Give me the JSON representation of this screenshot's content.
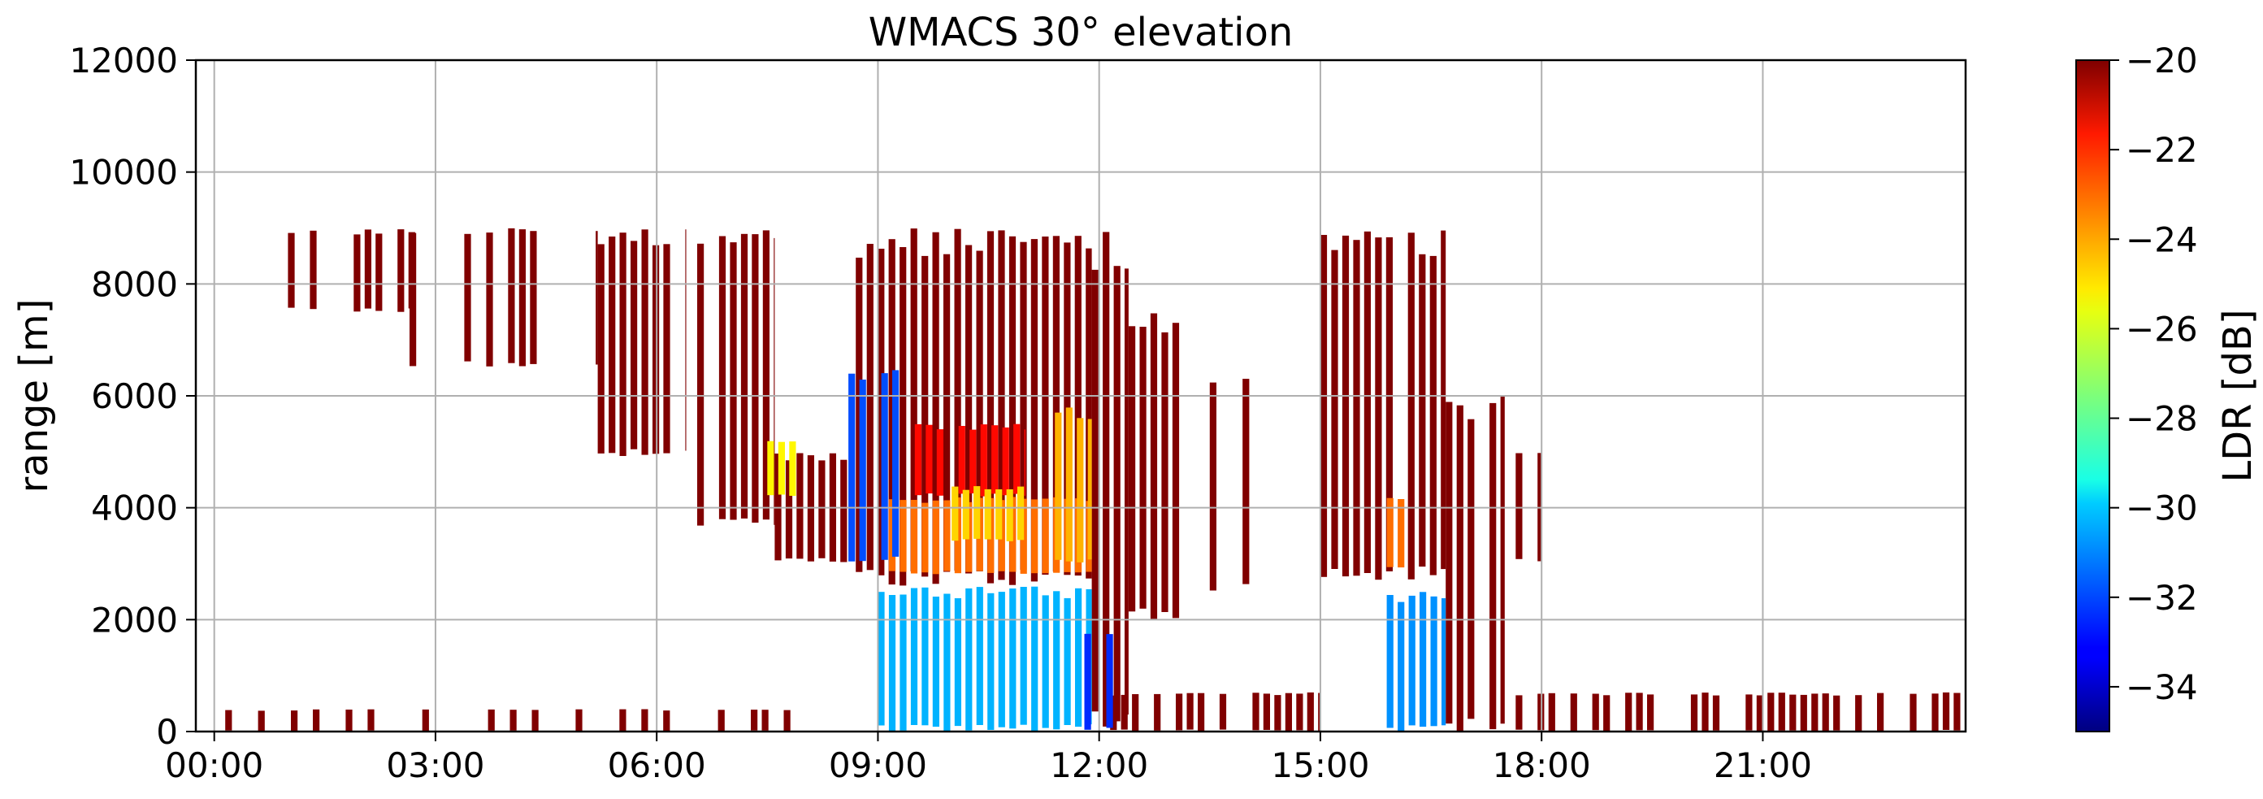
{
  "chart_data": {
    "type": "heatmap",
    "title": "WMACS 30° elevation",
    "xlabel": "",
    "ylabel": "range [m]",
    "x_tick_labels": [
      "00:00",
      "03:00",
      "06:00",
      "09:00",
      "12:00",
      "15:00",
      "18:00",
      "21:00"
    ],
    "x_ticks_hours": [
      0,
      3,
      6,
      9,
      12,
      15,
      18,
      21
    ],
    "xlim_hours": [
      -0.25,
      23.75
    ],
    "ylim": [
      0,
      12000
    ],
    "y_tick_labels": [
      "0",
      "2000",
      "4000",
      "6000",
      "8000",
      "10000",
      "12000"
    ],
    "y_ticks": [
      0,
      2000,
      4000,
      6000,
      8000,
      10000,
      12000
    ],
    "grid": true,
    "colorbar": {
      "label": "LDR [dB]",
      "range": [
        -35,
        -20
      ],
      "ticks": [
        -34,
        -32,
        -30,
        -28,
        -26,
        -24,
        -22,
        -20
      ],
      "tick_labels": [
        "−34",
        "−32",
        "−30",
        "−28",
        "−26",
        "−24",
        "−22",
        "−20"
      ],
      "colormap": "jet"
    },
    "ldr_regions": [
      {
        "t_start": 0.0,
        "t_end": 8.2,
        "r_bottom": 0,
        "r_top": 400,
        "ldr": -20,
        "density": 0.35
      },
      {
        "t_start": 1.0,
        "t_end": 3.2,
        "r_bottom": 7500,
        "r_top": 9000,
        "ldr": -20,
        "density": 0.45
      },
      {
        "t_start": 2.5,
        "t_end": 5.2,
        "r_bottom": 6500,
        "r_top": 9000,
        "ldr": -20,
        "density": 0.5
      },
      {
        "t_start": 5.2,
        "t_end": 6.4,
        "r_bottom": 4900,
        "r_top": 9000,
        "ldr": -20,
        "density": 0.85
      },
      {
        "t_start": 6.4,
        "t_end": 7.6,
        "r_bottom": 3600,
        "r_top": 9000,
        "ldr": -20,
        "density": 0.7
      },
      {
        "t_start": 7.6,
        "t_end": 8.7,
        "r_bottom": 3000,
        "r_top": 5000,
        "ldr": -20,
        "density": 0.85
      },
      {
        "t_start": 8.7,
        "t_end": 11.9,
        "r_bottom": 2600,
        "r_top": 9000,
        "ldr": -20,
        "density": 0.95
      },
      {
        "t_start": 11.9,
        "t_end": 12.4,
        "r_bottom": 0,
        "r_top": 9000,
        "ldr": -20,
        "density": 0.9
      },
      {
        "t_start": 12.4,
        "t_end": 13.2,
        "r_bottom": 2000,
        "r_top": 7500,
        "ldr": -20,
        "density": 0.7
      },
      {
        "t_start": 12.0,
        "t_end": 15.0,
        "r_bottom": 0,
        "r_top": 700,
        "ldr": -20,
        "density": 0.75
      },
      {
        "t_start": 13.5,
        "t_end": 14.2,
        "r_bottom": 2500,
        "r_top": 6500,
        "ldr": -20,
        "density": 0.35
      },
      {
        "t_start": 15.0,
        "t_end": 16.7,
        "r_bottom": 2700,
        "r_top": 9000,
        "ldr": -20,
        "density": 0.9
      },
      {
        "t_start": 16.7,
        "t_end": 17.5,
        "r_bottom": 0,
        "r_top": 6000,
        "ldr": -20,
        "density": 0.8
      },
      {
        "t_start": 17.5,
        "t_end": 18.0,
        "r_bottom": 3000,
        "r_top": 5000,
        "ldr": -20,
        "density": 0.75
      },
      {
        "t_start": 17.5,
        "t_end": 23.75,
        "r_bottom": 0,
        "r_top": 700,
        "ldr": -20,
        "density": 0.6
      },
      {
        "t_start": 9.0,
        "t_end": 11.9,
        "r_bottom": 0,
        "r_top": 2600,
        "ldr": -30.5,
        "density": 1.0
      },
      {
        "t_start": 9.0,
        "t_end": 11.9,
        "r_bottom": 2800,
        "r_top": 4200,
        "ldr": -23.5,
        "density": 0.95
      },
      {
        "t_start": 9.5,
        "t_end": 11.0,
        "r_bottom": 4200,
        "r_top": 5500,
        "ldr": -22,
        "density": 0.85
      },
      {
        "t_start": 10.0,
        "t_end": 11.0,
        "r_bottom": 3400,
        "r_top": 4400,
        "ldr": -25,
        "density": 0.85
      },
      {
        "t_start": 8.6,
        "t_end": 9.3,
        "r_bottom": 3000,
        "r_top": 6500,
        "ldr": -32,
        "density": 0.35
      },
      {
        "t_start": 7.5,
        "t_end": 7.9,
        "r_bottom": 4200,
        "r_top": 5200,
        "ldr": -25.5,
        "density": 0.55
      },
      {
        "t_start": 11.4,
        "t_end": 11.9,
        "r_bottom": 3000,
        "r_top": 5800,
        "ldr": -24.5,
        "density": 0.6
      },
      {
        "t_start": 15.9,
        "t_end": 16.7,
        "r_bottom": 0,
        "r_top": 2500,
        "ldr": -31,
        "density": 1.0
      },
      {
        "t_start": 15.9,
        "t_end": 16.4,
        "r_bottom": 2900,
        "r_top": 4200,
        "ldr": -23.5,
        "density": 0.7
      },
      {
        "t_start": 11.8,
        "t_end": 12.2,
        "r_bottom": 0,
        "r_top": 1800,
        "ldr": -32.5,
        "density": 0.6
      }
    ]
  }
}
